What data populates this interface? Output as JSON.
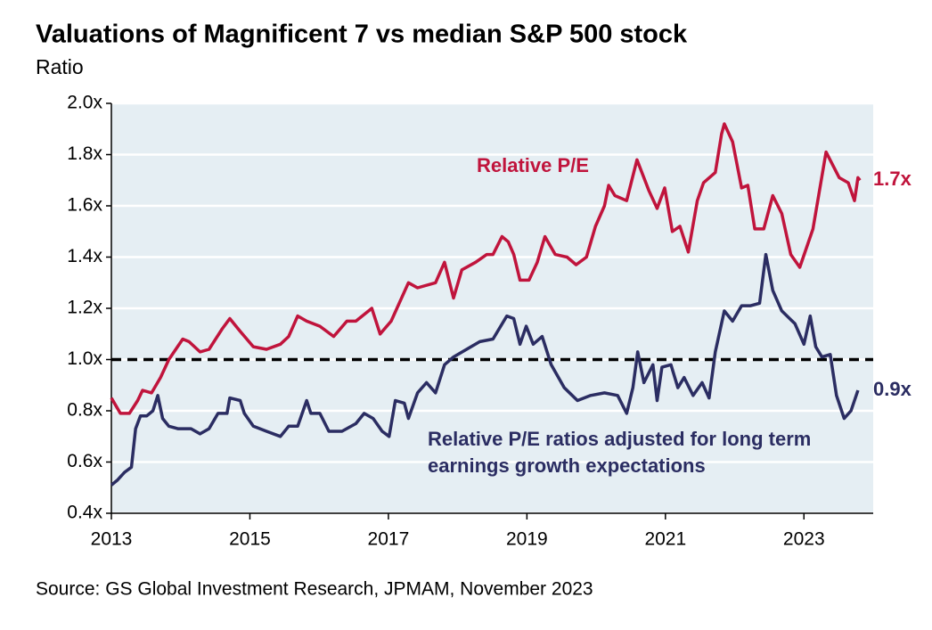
{
  "chart_data": {
    "type": "line",
    "title": "Valuations of Magnificent 7 vs median S&P 500 stock",
    "subtitle": "Ratio",
    "source": "Source: GS Global Investment Research, JPMAM, November 2023",
    "xlim": [
      2013,
      2024
    ],
    "xticks": [
      2013,
      2015,
      2017,
      2019,
      2021,
      2023
    ],
    "ylim": [
      0.4,
      2.0
    ],
    "yticks": [
      {
        "value": 0.4,
        "label": "0.4x"
      },
      {
        "value": 0.6,
        "label": "0.6x"
      },
      {
        "value": 0.8,
        "label": "0.8x"
      },
      {
        "value": 1.0,
        "label": "1.0x"
      },
      {
        "value": 1.2,
        "label": "1.2x"
      },
      {
        "value": 1.4,
        "label": "1.4x"
      },
      {
        "value": 1.6,
        "label": "1.6x"
      },
      {
        "value": 1.8,
        "label": "1.8x"
      },
      {
        "value": 2.0,
        "label": "2.0x"
      }
    ],
    "grid": true,
    "background": "#e5eef3",
    "reference_line": 1.0,
    "series": [
      {
        "name": "Relative P/E",
        "color": "#c0143c",
        "last_label": "1.7x",
        "x": [
          2013.0,
          2013.13,
          2013.26,
          2013.38,
          2013.45,
          2013.58,
          2013.71,
          2013.83,
          2014.03,
          2014.12,
          2014.28,
          2014.41,
          2014.6,
          2014.71,
          2014.86,
          2015.05,
          2015.24,
          2015.44,
          2015.56,
          2015.69,
          2015.82,
          2016.01,
          2016.21,
          2016.4,
          2016.53,
          2016.76,
          2016.88,
          2017.04,
          2017.29,
          2017.42,
          2017.68,
          2017.81,
          2017.94,
          2018.06,
          2018.26,
          2018.42,
          2018.51,
          2018.64,
          2018.73,
          2018.81,
          2018.9,
          2019.03,
          2019.15,
          2019.26,
          2019.41,
          2019.58,
          2019.71,
          2019.86,
          2019.99,
          2020.12,
          2020.18,
          2020.27,
          2020.44,
          2020.59,
          2020.76,
          2020.88,
          2020.99,
          2021.1,
          2021.21,
          2021.33,
          2021.46,
          2021.55,
          2021.72,
          2021.81,
          2021.85,
          2021.97,
          2022.1,
          2022.19,
          2022.29,
          2022.42,
          2022.55,
          2022.68,
          2022.81,
          2022.94,
          2023.13,
          2023.32,
          2023.51,
          2023.64,
          2023.73,
          2023.78,
          2023.81
        ],
        "values": [
          0.85,
          0.79,
          0.79,
          0.84,
          0.88,
          0.87,
          0.93,
          1.0,
          1.08,
          1.07,
          1.03,
          1.04,
          1.12,
          1.16,
          1.11,
          1.05,
          1.04,
          1.06,
          1.09,
          1.17,
          1.15,
          1.13,
          1.09,
          1.15,
          1.15,
          1.2,
          1.1,
          1.15,
          1.3,
          1.28,
          1.3,
          1.38,
          1.24,
          1.35,
          1.38,
          1.41,
          1.41,
          1.48,
          1.46,
          1.41,
          1.31,
          1.31,
          1.38,
          1.48,
          1.41,
          1.4,
          1.37,
          1.4,
          1.52,
          1.6,
          1.68,
          1.64,
          1.62,
          1.78,
          1.66,
          1.59,
          1.67,
          1.5,
          1.52,
          1.42,
          1.62,
          1.69,
          1.73,
          1.88,
          1.92,
          1.85,
          1.67,
          1.68,
          1.51,
          1.51,
          1.64,
          1.57,
          1.41,
          1.36,
          1.51,
          1.81,
          1.71,
          1.69,
          1.62,
          1.71,
          1.7
        ]
      },
      {
        "name": "Relative P/E ratios adjusted for long term earnings growth expectations",
        "color": "#2b2d62",
        "last_label": "0.9x",
        "x": [
          2013.0,
          2013.09,
          2013.19,
          2013.29,
          2013.35,
          2013.42,
          2013.51,
          2013.6,
          2013.67,
          2013.74,
          2013.83,
          2013.96,
          2014.15,
          2014.28,
          2014.41,
          2014.54,
          2014.67,
          2014.71,
          2014.86,
          2014.92,
          2015.05,
          2015.24,
          2015.44,
          2015.56,
          2015.69,
          2015.82,
          2015.88,
          2016.01,
          2016.14,
          2016.33,
          2016.53,
          2016.65,
          2016.78,
          2016.91,
          2017.01,
          2017.1,
          2017.23,
          2017.29,
          2017.42,
          2017.55,
          2017.68,
          2017.81,
          2017.94,
          2018.13,
          2018.32,
          2018.51,
          2018.71,
          2018.81,
          2018.9,
          2018.99,
          2019.09,
          2019.22,
          2019.35,
          2019.54,
          2019.73,
          2019.92,
          2020.12,
          2020.31,
          2020.44,
          2020.53,
          2020.6,
          2020.69,
          2020.82,
          2020.88,
          2020.95,
          2021.08,
          2021.18,
          2021.27,
          2021.4,
          2021.53,
          2021.63,
          2021.72,
          2021.85,
          2021.97,
          2022.1,
          2022.23,
          2022.36,
          2022.45,
          2022.55,
          2022.68,
          2022.87,
          2023.0,
          2023.09,
          2023.17,
          2023.26,
          2023.38,
          2023.47,
          2023.58,
          2023.68,
          2023.78
        ],
        "values": [
          0.51,
          0.53,
          0.56,
          0.58,
          0.73,
          0.78,
          0.78,
          0.8,
          0.86,
          0.77,
          0.74,
          0.73,
          0.73,
          0.71,
          0.73,
          0.79,
          0.79,
          0.85,
          0.84,
          0.79,
          0.74,
          0.72,
          0.7,
          0.74,
          0.74,
          0.84,
          0.79,
          0.79,
          0.72,
          0.72,
          0.75,
          0.79,
          0.77,
          0.72,
          0.7,
          0.84,
          0.83,
          0.77,
          0.87,
          0.91,
          0.87,
          0.98,
          1.01,
          1.04,
          1.07,
          1.08,
          1.17,
          1.16,
          1.06,
          1.13,
          1.06,
          1.09,
          0.98,
          0.89,
          0.84,
          0.86,
          0.87,
          0.86,
          0.79,
          0.89,
          1.03,
          0.91,
          0.98,
          0.84,
          0.97,
          0.98,
          0.89,
          0.93,
          0.86,
          0.91,
          0.85,
          1.03,
          1.19,
          1.15,
          1.21,
          1.21,
          1.22,
          1.41,
          1.27,
          1.19,
          1.14,
          1.06,
          1.17,
          1.05,
          1.01,
          1.02,
          0.86,
          0.77,
          0.8,
          0.88
        ]
      }
    ]
  }
}
